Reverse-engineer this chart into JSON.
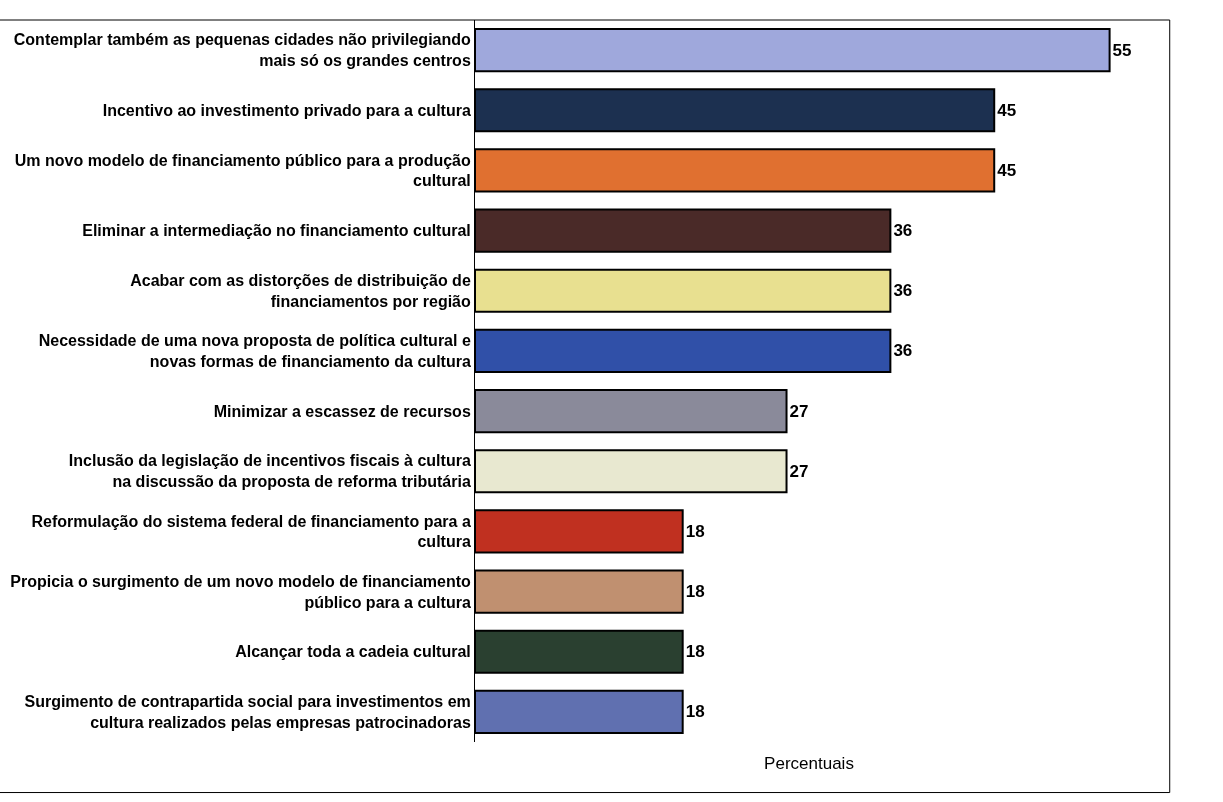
{
  "chart_data": {
    "type": "bar",
    "orientation": "horizontal",
    "xlabel": "Percentuais",
    "categories": [
      "Contemplar também as pequenas cidades não privilegiando mais só os grandes centros",
      "Incentivo ao investimento privado para a cultura",
      "Um novo modelo de financiamento público para a produção cultural",
      "Eliminar a intermediação no financiamento cultural",
      "Acabar com as distorções de distribuição de financiamentos por região",
      "Necessidade de uma nova proposta de política cultural e novas formas de financiamento da cultura",
      "Minimizar a escassez de recursos",
      "Inclusão da legislação de incentivos fiscais à cultura na discussão da proposta de reforma tributária",
      "Reformulação do sistema federal de financiamento para a cultura",
      "Propicia o surgimento de um novo modelo de financiamento público para a cultura",
      "Alcançar toda a cadeia cultural",
      "Surgimento de contrapartida social para investimentos em cultura realizados pelas empresas patrocinadoras"
    ],
    "values": [
      55,
      45,
      45,
      36,
      36,
      36,
      27,
      27,
      18,
      18,
      18,
      18
    ],
    "colors": [
      "#9fa8dc",
      "#1c3050",
      "#e07030",
      "#4a2a28",
      "#e8e090",
      "#3050a8",
      "#8a8a9a",
      "#e8e8d0",
      "#c03020",
      "#c09070",
      "#2a4030",
      "#6070b0"
    ],
    "data_labels": true,
    "tick_labels": "y",
    "grid": false,
    "legend": false
  }
}
